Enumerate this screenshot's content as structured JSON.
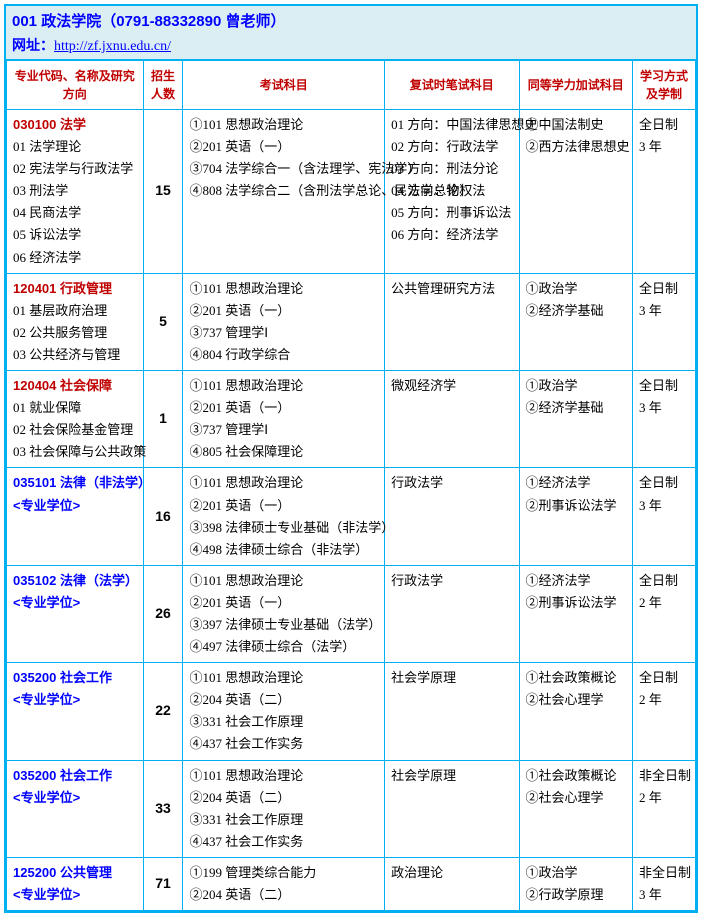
{
  "header": {
    "title": "001  政法学院（0791-88332890 曾老师）",
    "url_label": "网址：",
    "url": "http://zf.jxnu.edu.cn/"
  },
  "columns": {
    "c1": "专业代码、名称及研究方向",
    "c2": "招生人数",
    "c3": "考试科目",
    "c4": "复试时笔试科目",
    "c5": "同等学力加试科目",
    "c6": "学习方式及学制"
  },
  "rows": [
    {
      "major_code": "030100 法学",
      "major_type": "red",
      "directions": [
        "01 法学理论",
        "02 宪法学与行政法学",
        "03 刑法学",
        "04 民商法学",
        "05 诉讼法学",
        "06 经济法学"
      ],
      "count": "15",
      "exams": [
        "①101 思想政治理论",
        "②201 英语（一）",
        "③704 法学综合一（含法理学、宪法学）",
        "④808 法学综合二（含刑法学总论、民法学总论）"
      ],
      "retest": [
        "01 方向：中国法律思想史",
        "02 方向：行政法学",
        "03 方向：刑法分论",
        "04 方向：物权法",
        "05 方向：刑事诉讼法",
        "06 方向：经济法学"
      ],
      "extra": [
        "①中国法制史",
        "②西方法律思想史"
      ],
      "mode": [
        "全日制",
        "3 年"
      ]
    },
    {
      "major_code": "120401 行政管理",
      "major_type": "red",
      "directions": [
        "01 基层政府治理",
        "02 公共服务管理",
        "03 公共经济与管理"
      ],
      "count": "5",
      "exams": [
        "①101 思想政治理论",
        "②201 英语（一）",
        "③737 管理学Ⅰ",
        "④804 行政学综合"
      ],
      "retest": [
        "公共管理研究方法"
      ],
      "extra": [
        "①政治学",
        "②经济学基础"
      ],
      "mode": [
        "全日制",
        "3 年"
      ]
    },
    {
      "major_code": "120404 社会保障",
      "major_type": "red",
      "directions": [
        "01 就业保障",
        "02 社会保险基金管理",
        "03 社会保障与公共政策"
      ],
      "count": "1",
      "exams": [
        "①101 思想政治理论",
        "②201 英语（一）",
        "③737 管理学Ⅰ",
        "④805 社会保障理论"
      ],
      "retest": [
        "微观经济学"
      ],
      "extra": [
        "①政治学",
        "②经济学基础"
      ],
      "mode": [
        "全日制",
        "3 年"
      ]
    },
    {
      "major_code": "035101 法律（非法学）",
      "major_type": "blue",
      "sub": "<专业学位>",
      "directions": [],
      "count": "16",
      "exams": [
        "①101 思想政治理论",
        "②201 英语（一）",
        "③398 法律硕士专业基础（非法学）",
        "④498 法律硕士综合（非法学）"
      ],
      "retest": [
        "行政法学"
      ],
      "extra": [
        "①经济法学",
        "②刑事诉讼法学"
      ],
      "mode": [
        "全日制",
        "3 年"
      ]
    },
    {
      "major_code": "035102 法律（法学）",
      "major_type": "blue",
      "sub": "<专业学位>",
      "directions": [],
      "count": "26",
      "exams": [
        "①101 思想政治理论",
        "②201 英语（一）",
        "③397 法律硕士专业基础（法学）",
        "④497 法律硕士综合（法学）"
      ],
      "retest": [
        "行政法学"
      ],
      "extra": [
        "①经济法学",
        "②刑事诉讼法学"
      ],
      "mode": [
        "全日制",
        "2 年"
      ]
    },
    {
      "major_code": "035200 社会工作",
      "major_type": "blue",
      "sub": "<专业学位>",
      "directions": [],
      "count": "22",
      "exams": [
        "①101 思想政治理论",
        "②204 英语（二）",
        "③331 社会工作原理",
        "④437 社会工作实务"
      ],
      "retest": [
        "社会学原理"
      ],
      "extra": [
        "①社会政策概论",
        "②社会心理学"
      ],
      "mode": [
        "全日制",
        "2 年"
      ]
    },
    {
      "major_code": "035200 社会工作",
      "major_type": "blue",
      "sub": "<专业学位>",
      "directions": [],
      "count": "33",
      "exams": [
        "①101 思想政治理论",
        "②204 英语（二）",
        "③331 社会工作原理",
        "④437 社会工作实务"
      ],
      "retest": [
        "社会学原理"
      ],
      "extra": [
        "①社会政策概论",
        "②社会心理学"
      ],
      "mode": [
        "非全日制",
        "2 年"
      ]
    },
    {
      "major_code": "125200 公共管理",
      "major_type": "blue",
      "sub": "<专业学位>",
      "directions": [],
      "count": "71",
      "exams": [
        "①199 管理类综合能力",
        "②204 英语（二）"
      ],
      "retest": [
        "政治理论"
      ],
      "extra": [
        "①政治学",
        "②行政学原理"
      ],
      "mode": [
        "非全日制",
        "3 年"
      ]
    }
  ],
  "widths": {
    "c1": 130,
    "c2": 38,
    "c3": 192,
    "c4": 128,
    "c5": 108,
    "c6": 60
  }
}
